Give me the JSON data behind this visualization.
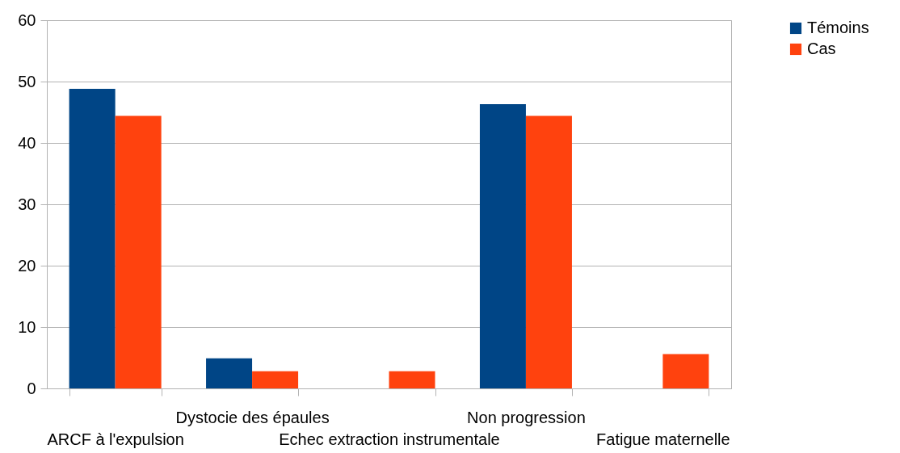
{
  "chart_data": {
    "type": "bar",
    "categories": [
      "ARCF à l'expulsion",
      "Dystocie des épaules",
      "Echec extraction instrumentale",
      "Non progression",
      "Fatigue maternelle"
    ],
    "series": [
      {
        "name": "Témoins",
        "color": "#004586",
        "values": [
          48.8,
          4.9,
          0,
          46.3,
          0
        ]
      },
      {
        "name": "Cas",
        "color": "#ff420e",
        "values": [
          44.4,
          2.8,
          2.8,
          44.4,
          5.6
        ]
      }
    ],
    "ylim": [
      0,
      60
    ],
    "yticks": [
      0,
      10,
      20,
      30,
      40,
      50,
      60
    ],
    "grid": "y",
    "legend": "right"
  }
}
